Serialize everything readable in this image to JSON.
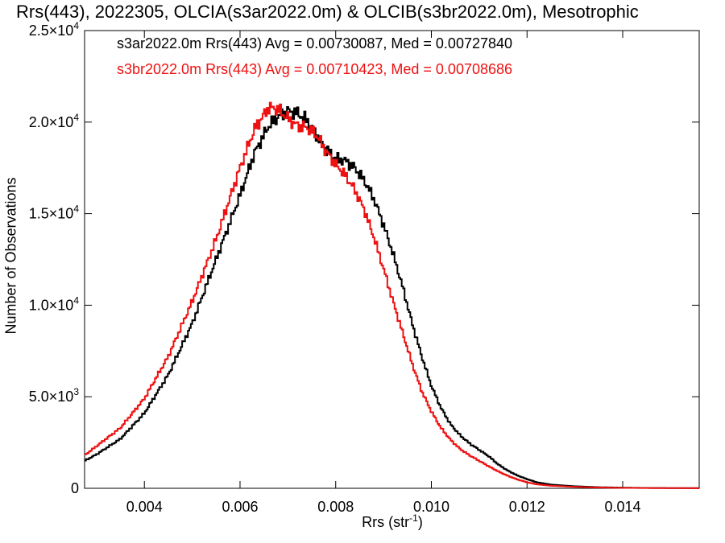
{
  "chart_data": {
    "type": "histogram",
    "title": "Rrs(443), 2022305, OLCIA(s3ar2022.0m) & OLCIB(s3br2022.0m), Mesotrophic",
    "xlabel_main": "Rrs (str",
    "xlabel_exp": "-1",
    "xlabel_end": ")",
    "ylabel": "Number of Observations",
    "xlim": [
      0.00275,
      0.0156
    ],
    "ylim": [
      0,
      25000
    ],
    "xticks": [
      {
        "value": 0.004,
        "label": "0.004"
      },
      {
        "value": 0.006,
        "label": "0.006"
      },
      {
        "value": 0.008,
        "label": "0.008"
      },
      {
        "value": 0.01,
        "label": "0.010"
      },
      {
        "value": 0.012,
        "label": "0.012"
      },
      {
        "value": 0.014,
        "label": "0.014"
      }
    ],
    "yticks": [
      {
        "value": 0,
        "mant": "0",
        "exp": ""
      },
      {
        "value": 5000,
        "mant": "5.0×10",
        "exp": "3"
      },
      {
        "value": 10000,
        "mant": "1.0×10",
        "exp": "4"
      },
      {
        "value": 15000,
        "mant": "1.5×10",
        "exp": "4"
      },
      {
        "value": 20000,
        "mant": "2.0×10",
        "exp": "4"
      },
      {
        "value": 25000,
        "mant": "2.5×10",
        "exp": "4"
      }
    ],
    "legend": [
      {
        "text": "s3ar2022.0m Rrs(443) Avg = 0.00730087, Med = 0.00727840",
        "color": "#000000"
      },
      {
        "text": "s3br2022.0m Rrs(443) Avg = 0.00710423, Med = 0.00708686",
        "color": "#ee1111"
      }
    ],
    "series": [
      {
        "color": "#000000",
        "x": [
          0.00275,
          0.003,
          0.0035,
          0.004,
          0.0045,
          0.005,
          0.0055,
          0.006,
          0.0063,
          0.0066,
          0.0068,
          0.007,
          0.0072,
          0.0074,
          0.0076,
          0.0078,
          0.008,
          0.0082,
          0.0084,
          0.0086,
          0.0088,
          0.009,
          0.0092,
          0.0094,
          0.0096,
          0.0098,
          0.01,
          0.0102,
          0.0104,
          0.0106,
          0.0108,
          0.011,
          0.0112,
          0.0114,
          0.0116,
          0.0118,
          0.012,
          0.0122,
          0.0125,
          0.013,
          0.0135,
          0.014,
          0.0145,
          0.015,
          0.0156
        ],
        "y": [
          1500,
          1850,
          2700,
          4100,
          6200,
          9000,
          12500,
          16000,
          18300,
          19800,
          20300,
          20600,
          20500,
          20100,
          19300,
          18500,
          18000,
          17900,
          17500,
          16800,
          15800,
          14400,
          12800,
          11000,
          9000,
          7200,
          5600,
          4400,
          3500,
          2900,
          2450,
          2100,
          1750,
          1300,
          960,
          700,
          500,
          330,
          200,
          110,
          60,
          35,
          20,
          12,
          8
        ]
      },
      {
        "color": "#ee1111",
        "x": [
          0.00275,
          0.003,
          0.0035,
          0.004,
          0.0045,
          0.005,
          0.0055,
          0.006,
          0.0063,
          0.0066,
          0.0068,
          0.007,
          0.0072,
          0.0074,
          0.0076,
          0.0078,
          0.008,
          0.0082,
          0.0084,
          0.0086,
          0.0088,
          0.009,
          0.0092,
          0.0094,
          0.0096,
          0.0098,
          0.01,
          0.0102,
          0.0104,
          0.0106,
          0.0108,
          0.011,
          0.0112,
          0.0114,
          0.0116,
          0.0118,
          0.012,
          0.0122,
          0.0125,
          0.013,
          0.0135,
          0.014,
          0.0145,
          0.015,
          0.0156
        ],
        "y": [
          1800,
          2300,
          3300,
          4900,
          7200,
          10200,
          13600,
          17500,
          19600,
          20800,
          20700,
          20200,
          19800,
          19700,
          19300,
          18400,
          17700,
          17100,
          16300,
          15200,
          13700,
          12000,
          10200,
          8500,
          6800,
          5300,
          4200,
          3300,
          2650,
          2150,
          1800,
          1500,
          1200,
          920,
          680,
          480,
          330,
          220,
          140,
          80,
          45,
          25,
          15,
          10,
          6
        ]
      }
    ]
  }
}
